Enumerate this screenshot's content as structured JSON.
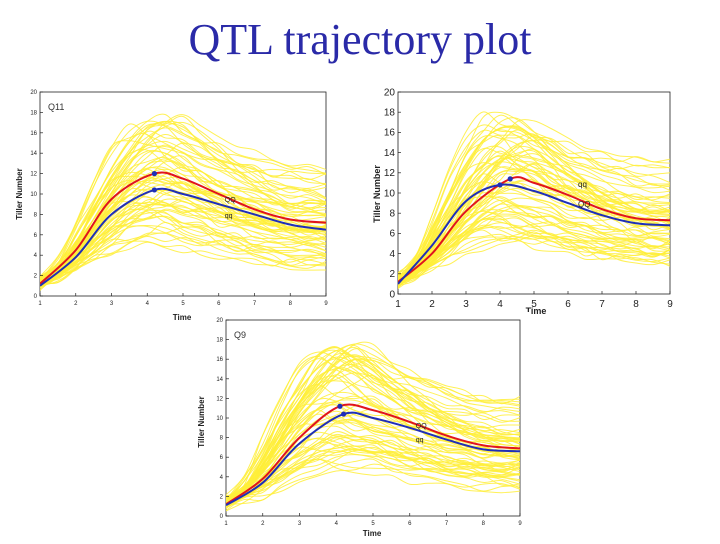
{
  "title": "QTL trajectory plot",
  "colors": {
    "title": "#2a2aa8",
    "background_curves": "#ffef3a",
    "QQ": "#e0141e",
    "qq": "#1f2fb8",
    "peak_marker": "#1f2fb8"
  },
  "chart_data": [
    {
      "type": "line",
      "panel_label": "Q11",
      "xlabel": "Time",
      "ylabel": "Tiller Number",
      "xlim": [
        1,
        9
      ],
      "ylim": [
        0,
        20
      ],
      "x_ticks": [
        "1",
        "2",
        "3",
        "4",
        "5",
        "6",
        "7",
        "8",
        "9"
      ],
      "y_ticks": [
        "0",
        "2",
        "4",
        "6",
        "8",
        "10",
        "12",
        "14",
        "16",
        "18",
        "20"
      ],
      "grid": false,
      "background_individuals": "yellow",
      "series": [
        {
          "name": "QQ",
          "x": [
            1,
            2,
            3,
            4.2,
            5,
            6,
            7,
            8,
            9
          ],
          "values": [
            1.2,
            4.5,
            9.5,
            12.0,
            11.5,
            10.0,
            8.5,
            7.5,
            7.2
          ],
          "peak": [
            4.2,
            12.0
          ],
          "color": "#e0141e"
        },
        {
          "name": "qq",
          "x": [
            1,
            2,
            3,
            4.2,
            5,
            6,
            7,
            8,
            9
          ],
          "values": [
            1.0,
            3.8,
            8.0,
            10.4,
            10.0,
            9.0,
            8.0,
            7.0,
            6.5
          ],
          "peak": [
            4.2,
            10.4
          ],
          "color": "#1f2fb8"
        }
      ]
    },
    {
      "type": "line",
      "panel_label": "",
      "xlabel": "Time",
      "ylabel": "Tiller Number",
      "xlim": [
        1,
        9
      ],
      "ylim": [
        0,
        20
      ],
      "x_ticks": [
        "1",
        "2",
        "3",
        "4",
        "5",
        "6",
        "7",
        "8",
        "9"
      ],
      "y_ticks": [
        "0",
        "2",
        "4",
        "6",
        "8",
        "10",
        "12",
        "14",
        "16",
        "18",
        "20"
      ],
      "grid": false,
      "background_individuals": "yellow",
      "series": [
        {
          "name": "qq",
          "x": [
            1,
            2,
            3,
            4.3,
            5,
            6,
            7,
            8,
            9
          ],
          "values": [
            1.2,
            4.0,
            8.2,
            11.4,
            11.0,
            9.8,
            8.4,
            7.5,
            7.3
          ],
          "peak": [
            4.3,
            11.4
          ],
          "color": "#e0141e"
        },
        {
          "name": "QQ",
          "x": [
            1,
            2,
            3,
            4.0,
            5,
            6,
            7,
            8,
            9
          ],
          "values": [
            1.0,
            4.8,
            9.2,
            10.8,
            10.2,
            9.0,
            7.8,
            7.0,
            6.8
          ],
          "peak": [
            4.0,
            10.8
          ],
          "color": "#1f2fb8"
        }
      ]
    },
    {
      "type": "line",
      "panel_label": "Q9",
      "xlabel": "Time",
      "ylabel": "Tiller Number",
      "xlim": [
        1,
        9
      ],
      "ylim": [
        0,
        20
      ],
      "x_ticks": [
        "1",
        "2",
        "3",
        "4",
        "5",
        "6",
        "7",
        "8",
        "9"
      ],
      "y_ticks": [
        "0",
        "2",
        "4",
        "6",
        "8",
        "10",
        "12",
        "14",
        "16",
        "18",
        "20"
      ],
      "grid": false,
      "background_individuals": "yellow",
      "series": [
        {
          "name": "QQ",
          "x": [
            1,
            2,
            3,
            4.1,
            5,
            6,
            7,
            8,
            9
          ],
          "values": [
            1.2,
            3.8,
            8.0,
            11.2,
            10.8,
            9.6,
            8.2,
            7.2,
            6.9
          ],
          "peak": [
            4.1,
            11.2
          ],
          "color": "#e0141e"
        },
        {
          "name": "qq",
          "x": [
            1,
            2,
            3,
            4.2,
            5,
            6,
            7,
            8,
            9
          ],
          "values": [
            1.1,
            3.4,
            7.4,
            10.4,
            10.0,
            9.0,
            7.8,
            6.8,
            6.6
          ],
          "peak": [
            4.2,
            10.4
          ],
          "color": "#1f2fb8"
        }
      ]
    }
  ]
}
